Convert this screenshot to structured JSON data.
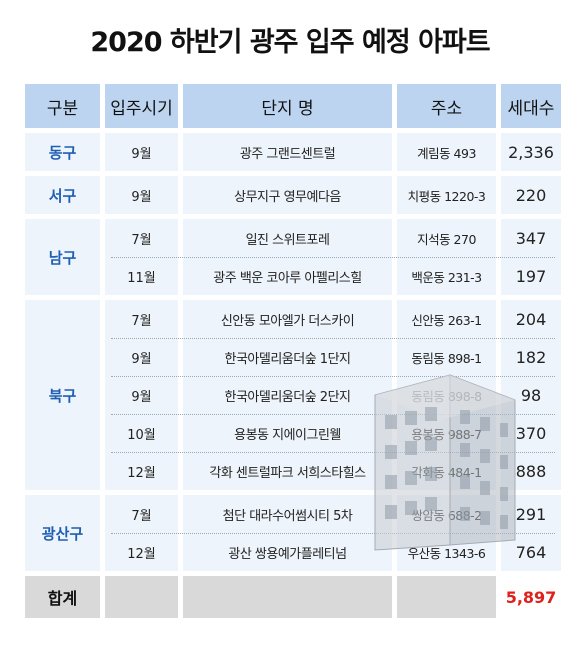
{
  "title": "2020 하반기 광주 입주 예정 아파트",
  "headers": {
    "region": "구분",
    "move_in": "입주시기",
    "complex": "단지 명",
    "address": "주소",
    "households": "세대수"
  },
  "groups": [
    {
      "region": "동구",
      "rows": [
        {
          "month": "9월",
          "complex": "광주 그랜드센트럴",
          "address": "계림동 493",
          "households": "2,336"
        }
      ]
    },
    {
      "region": "서구",
      "rows": [
        {
          "month": "9월",
          "complex": "상무지구 영무예다음",
          "address": "치평동 1220-3",
          "households": "220"
        }
      ]
    },
    {
      "region": "남구",
      "rows": [
        {
          "month": "7월",
          "complex": "일진 스위트포레",
          "address": "지석동 270",
          "households": "347"
        },
        {
          "month": "11월",
          "complex": "광주 백운 코아루 아펠리스힐",
          "address": "백운동 231-3",
          "households": "197"
        }
      ]
    },
    {
      "region": "북구",
      "rows": [
        {
          "month": "7월",
          "complex": "신안동 모아엘가 더스카이",
          "address": "신안동 263-1",
          "households": "204"
        },
        {
          "month": "9월",
          "complex": "한국아델리움더숲 1단지",
          "address": "동림동 898-1",
          "households": "182"
        },
        {
          "month": "9월",
          "complex": "한국아델리움더숲 2단지",
          "address": "동림동 898-8",
          "households": "98"
        },
        {
          "month": "10월",
          "complex": "용봉동 지에이그린웰",
          "address": "용봉동 988-7",
          "households": "370"
        },
        {
          "month": "12월",
          "complex": "각화 센트럴파크 서희스타힐스",
          "address": "각화동 484-1",
          "households": "888"
        }
      ]
    },
    {
      "region": "광산구",
      "rows": [
        {
          "month": "7월",
          "complex": "첨단 대라수어썸시티 5차",
          "address": "쌍암동 688-2",
          "households": "291"
        },
        {
          "month": "12월",
          "complex": "광산 쌍용예가플레티넘",
          "address": "우산동 1343-6",
          "households": "764"
        }
      ]
    }
  ],
  "total": {
    "label": "합계",
    "households": "5,897"
  },
  "colors": {
    "header_bg": "#bcd4ef",
    "row_bg": "#eef4fb",
    "region_text": "#1f5fb3",
    "total_bg": "#d9d9d9",
    "total_value": "#e0201a"
  },
  "decoration": "building-icon"
}
